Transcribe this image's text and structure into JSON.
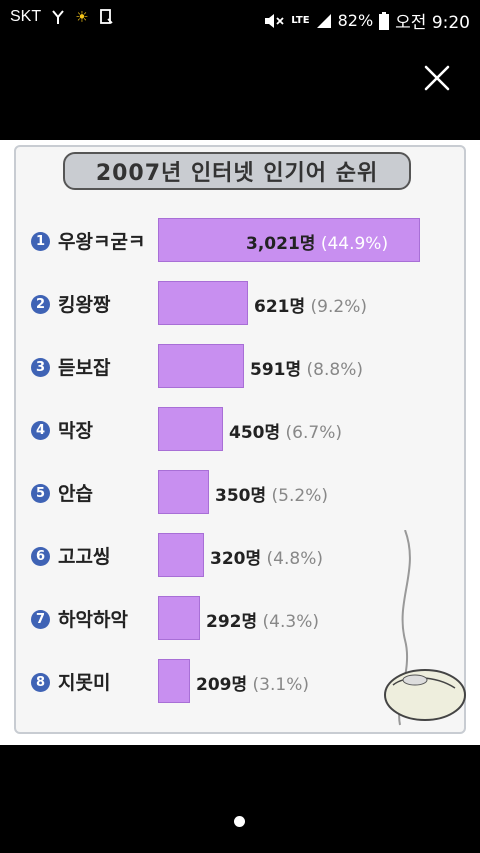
{
  "status_bar": {
    "carrier": "SKT",
    "network": "LTE",
    "battery": "82%",
    "time": "오전 9:20"
  },
  "chart_data": {
    "type": "bar",
    "title": "2007년 인터넷 인기어 순위",
    "categories": [
      "우왕ㅋ굳ㅋ",
      "킹왕짱",
      "듣보잡",
      "막장",
      "안습",
      "고고씽",
      "하악하악",
      "지못미"
    ],
    "ranks": [
      "1",
      "2",
      "3",
      "4",
      "5",
      "6",
      "7",
      "8"
    ],
    "values": [
      3021,
      621,
      591,
      450,
      350,
      320,
      292,
      209
    ],
    "value_labels": [
      "3,021명",
      "621명",
      "591명",
      "450명",
      "350명",
      "320명",
      "292명",
      "209명"
    ],
    "percent_labels": [
      "(44.9%)",
      "(9.2%)",
      "(8.8%)",
      "(6.7%)",
      "(5.2%)",
      "(4.8%)",
      "(4.3%)",
      "(3.1%)"
    ],
    "bar_color": "#c88ff0",
    "orientation": "horizontal"
  },
  "icons": {
    "close": "close-icon",
    "mouse": "computer-mouse-icon"
  }
}
